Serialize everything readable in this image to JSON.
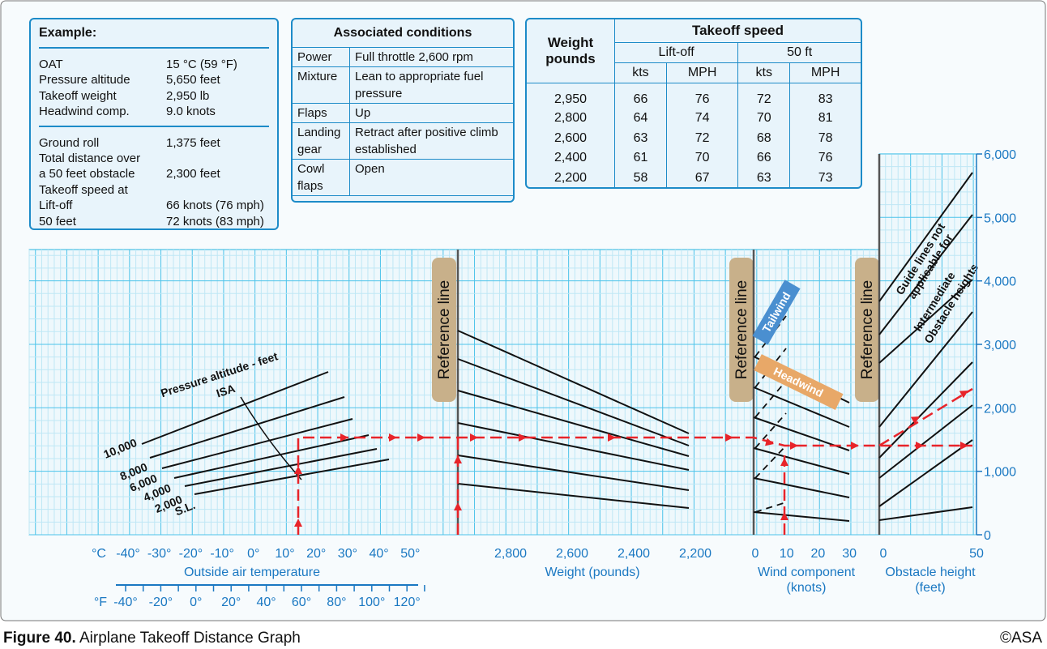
{
  "example": {
    "title": "Example:",
    "inputs": [
      {
        "label": "OAT",
        "value": "15 °C (59 °F)"
      },
      {
        "label": "Pressure altitude",
        "value": "5,650 feet"
      },
      {
        "label": "Takeoff weight",
        "value": "2,950 lb"
      },
      {
        "label": "Headwind comp.",
        "value": "9.0 knots"
      }
    ],
    "results": [
      {
        "label": "Ground roll",
        "value": "1,375 feet"
      },
      {
        "label": "Total distance over"
      },
      {
        "label": "a 50 feet obstacle",
        "value": "2,300 feet"
      },
      {
        "label": "Takeoff speed at"
      },
      {
        "label": "Lift-off",
        "value": "66 knots (76 mph)"
      },
      {
        "label": "50 feet",
        "value": "72 knots (83 mph)"
      }
    ]
  },
  "conditions": {
    "title": "Associated conditions",
    "rows": [
      {
        "item": "Power",
        "value": "Full throttle 2,600 rpm"
      },
      {
        "item": "Mixture",
        "value": "Lean to appropriate fuel pressure"
      },
      {
        "item": "Flaps",
        "value": "Up"
      },
      {
        "item": "Landing gear",
        "value": "Retract after positive climb established"
      },
      {
        "item": "Cowl flaps",
        "value": "Open"
      }
    ]
  },
  "speeds": {
    "weight_header": "Weight pounds",
    "title": "Takeoff speed",
    "groups": [
      "Lift-off",
      "50 ft"
    ],
    "units": [
      "kts",
      "MPH",
      "kts",
      "MPH"
    ],
    "rows": [
      [
        "2,950",
        "66",
        "76",
        "72",
        "83"
      ],
      [
        "2,800",
        "64",
        "74",
        "70",
        "81"
      ],
      [
        "2,600",
        "63",
        "72",
        "68",
        "78"
      ],
      [
        "2,400",
        "61",
        "70",
        "66",
        "76"
      ],
      [
        "2,200",
        "58",
        "67",
        "63",
        "73"
      ]
    ]
  },
  "graph": {
    "oat_c_unit": "°C",
    "oat_c_ticks": [
      "-40°",
      "-30°",
      "-20°",
      "-10°",
      "0°",
      "10°",
      "20°",
      "30°",
      "40°",
      "50°"
    ],
    "oat_f_unit": "°F",
    "oat_f_ticks": [
      "-40°",
      "-20°",
      "0°",
      "20°",
      "40°",
      "60°",
      "80°",
      "100°",
      "120°"
    ],
    "oat_label": "Outside air temperature",
    "weight_ticks": [
      "2,800",
      "2,600",
      "2,400",
      "2,200"
    ],
    "weight_label": "Weight (pounds)",
    "wind_ticks": [
      "0",
      "10",
      "20",
      "30"
    ],
    "wind_label": [
      "Wind component",
      "(knots)"
    ],
    "obstacle_ticks": [
      "0",
      "50"
    ],
    "obstacle_label": [
      "Obstacle height",
      "(feet)"
    ],
    "distance_ticks": [
      "0",
      "1,000",
      "2,000",
      "3,000",
      "4,000",
      "5,000",
      "6,000"
    ],
    "reference_label": "Reference line",
    "tailwind": "Tailwind",
    "headwind": "Headwind",
    "altitude_title": "Pressure altitude - feet",
    "isa": "ISA",
    "altitudes": [
      "10,000",
      "8,000",
      "6,000",
      "4,000",
      "2,000",
      "S.L."
    ],
    "guide_note": [
      "Guide lines not",
      "applicable for",
      "Intermediate",
      "Obstacle heights"
    ]
  },
  "caption": {
    "figure": "Figure 40.",
    "title": "Airplane Takeoff Distance Graph",
    "credit": "©ASA"
  }
}
